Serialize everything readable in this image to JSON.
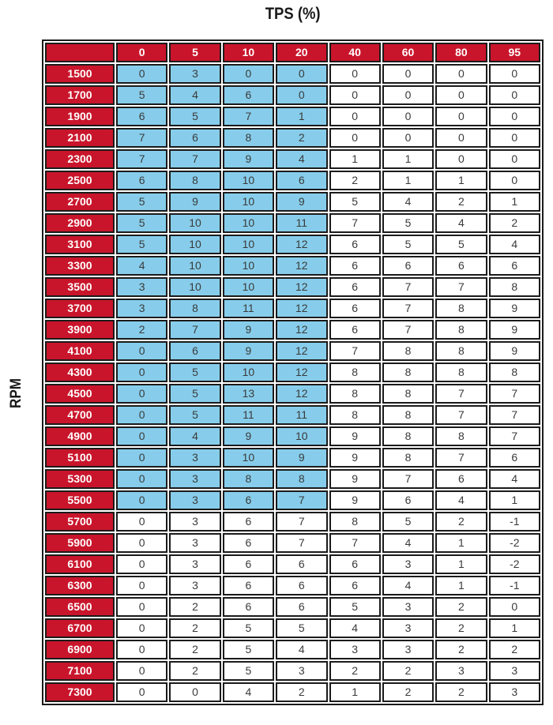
{
  "title": "TPS (%)",
  "y_axis_label": "RPM",
  "colors": {
    "header_red": "#C9152B",
    "highlight_blue": "#87CDEB",
    "border_black": "#1B1B1B",
    "header_text": "#FFFFFF",
    "cell_text": "#3A3A3A"
  },
  "chart_data": {
    "type": "table",
    "title": "TPS (%)",
    "row_axis_label": "RPM",
    "columns": [
      "0",
      "5",
      "10",
      "20",
      "40",
      "60",
      "80",
      "95"
    ],
    "rows": [
      {
        "rpm": "1500",
        "values": [
          0,
          3,
          0,
          0,
          0,
          0,
          0,
          0
        ]
      },
      {
        "rpm": "1700",
        "values": [
          5,
          4,
          6,
          0,
          0,
          0,
          0,
          0
        ]
      },
      {
        "rpm": "1900",
        "values": [
          6,
          5,
          7,
          1,
          0,
          0,
          0,
          0
        ]
      },
      {
        "rpm": "2100",
        "values": [
          7,
          6,
          8,
          2,
          0,
          0,
          0,
          0
        ]
      },
      {
        "rpm": "2300",
        "values": [
          7,
          7,
          9,
          4,
          1,
          1,
          0,
          0
        ]
      },
      {
        "rpm": "2500",
        "values": [
          6,
          8,
          10,
          6,
          2,
          1,
          1,
          0
        ]
      },
      {
        "rpm": "2700",
        "values": [
          5,
          9,
          10,
          9,
          5,
          4,
          2,
          1
        ]
      },
      {
        "rpm": "2900",
        "values": [
          5,
          10,
          10,
          11,
          7,
          5,
          4,
          2
        ]
      },
      {
        "rpm": "3100",
        "values": [
          5,
          10,
          10,
          12,
          6,
          5,
          5,
          4
        ]
      },
      {
        "rpm": "3300",
        "values": [
          4,
          10,
          10,
          12,
          6,
          6,
          6,
          6
        ]
      },
      {
        "rpm": "3500",
        "values": [
          3,
          10,
          10,
          12,
          6,
          7,
          7,
          8
        ]
      },
      {
        "rpm": "3700",
        "values": [
          3,
          8,
          11,
          12,
          6,
          7,
          8,
          9
        ]
      },
      {
        "rpm": "3900",
        "values": [
          2,
          7,
          9,
          12,
          6,
          7,
          8,
          9
        ]
      },
      {
        "rpm": "4100",
        "values": [
          0,
          6,
          9,
          12,
          7,
          8,
          8,
          9
        ]
      },
      {
        "rpm": "4300",
        "values": [
          0,
          5,
          10,
          12,
          8,
          8,
          8,
          8
        ]
      },
      {
        "rpm": "4500",
        "values": [
          0,
          5,
          13,
          12,
          8,
          8,
          7,
          7
        ]
      },
      {
        "rpm": "4700",
        "values": [
          0,
          5,
          11,
          11,
          8,
          8,
          7,
          7
        ]
      },
      {
        "rpm": "4900",
        "values": [
          0,
          4,
          9,
          10,
          9,
          8,
          8,
          7
        ]
      },
      {
        "rpm": "5100",
        "values": [
          0,
          3,
          10,
          9,
          9,
          8,
          7,
          6
        ]
      },
      {
        "rpm": "5300",
        "values": [
          0,
          3,
          8,
          8,
          9,
          7,
          6,
          4
        ]
      },
      {
        "rpm": "5500",
        "values": [
          0,
          3,
          6,
          7,
          9,
          6,
          4,
          1
        ]
      },
      {
        "rpm": "5700",
        "values": [
          0,
          3,
          6,
          7,
          8,
          5,
          2,
          -1
        ]
      },
      {
        "rpm": "5900",
        "values": [
          0,
          3,
          6,
          7,
          7,
          4,
          1,
          -2
        ]
      },
      {
        "rpm": "6100",
        "values": [
          0,
          3,
          6,
          6,
          6,
          3,
          1,
          -2
        ]
      },
      {
        "rpm": "6300",
        "values": [
          0,
          3,
          6,
          6,
          6,
          4,
          1,
          -1
        ]
      },
      {
        "rpm": "6500",
        "values": [
          0,
          2,
          6,
          6,
          5,
          3,
          2,
          0
        ]
      },
      {
        "rpm": "6700",
        "values": [
          0,
          2,
          5,
          5,
          4,
          3,
          2,
          1
        ]
      },
      {
        "rpm": "6900",
        "values": [
          0,
          2,
          5,
          4,
          3,
          3,
          2,
          2
        ]
      },
      {
        "rpm": "7100",
        "values": [
          0,
          2,
          5,
          3,
          2,
          2,
          3,
          3
        ]
      },
      {
        "rpm": "7300",
        "values": [
          0,
          0,
          4,
          2,
          1,
          2,
          2,
          3
        ]
      }
    ],
    "highlight": {
      "color": "#87CDEB",
      "first_row_rpm": "1500",
      "last_row_rpm": "5500",
      "first_col_tps": "0",
      "last_col_tps": "20",
      "row_end_index": 20,
      "col_end_index": 3
    },
    "legend_position": "none",
    "grid": "all-cell-borders"
  }
}
